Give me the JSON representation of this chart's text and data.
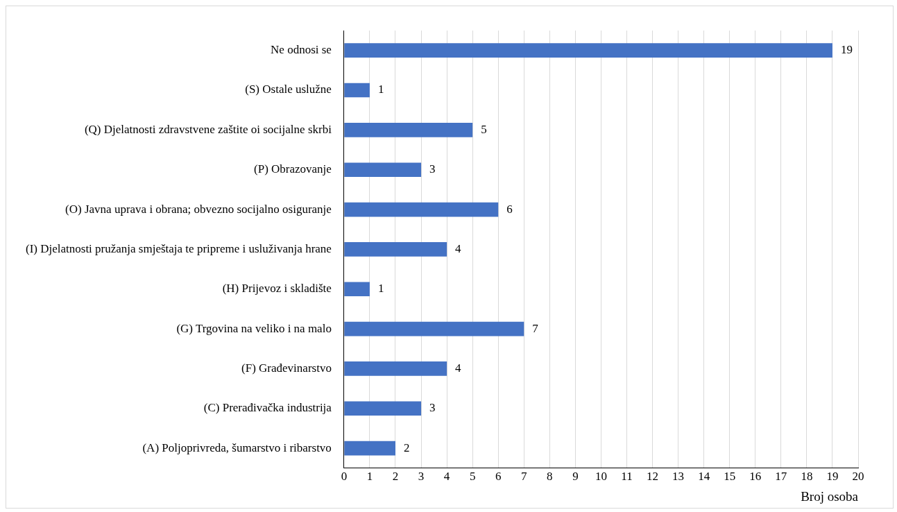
{
  "chart_data": {
    "type": "bar",
    "orientation": "horizontal",
    "xlabel": "Broj osoba",
    "categories": [
      "Ne odnosi se",
      "(S) Ostale uslužne",
      "(Q) Djelatnosti zdravstvene zaštite oi socijalne skrbi",
      "(P) Obrazovanje",
      "(O) Javna uprava i obrana; obvezno socijalno osiguranje",
      "(I) Djelatnosti pružanja smještaja te pripreme i usluživanja hrane",
      "(H) Prijevoz i skladište",
      "(G) Trgovina na veliko i na malo",
      "(F) Građevinarstvo",
      "(C) Prerađivačka industrija",
      "(A) Poljoprivreda, šumarstvo i ribarstvo"
    ],
    "values": [
      19,
      1,
      5,
      3,
      6,
      4,
      1,
      7,
      4,
      3,
      2
    ],
    "color": "#4472c4",
    "xlim": [
      0,
      20
    ],
    "xticks": [
      0,
      1,
      2,
      3,
      4,
      5,
      6,
      7,
      8,
      9,
      10,
      11,
      12,
      13,
      14,
      15,
      16,
      17,
      18,
      19,
      20
    ],
    "grid": "x",
    "legend": false,
    "data_labels": true
  }
}
